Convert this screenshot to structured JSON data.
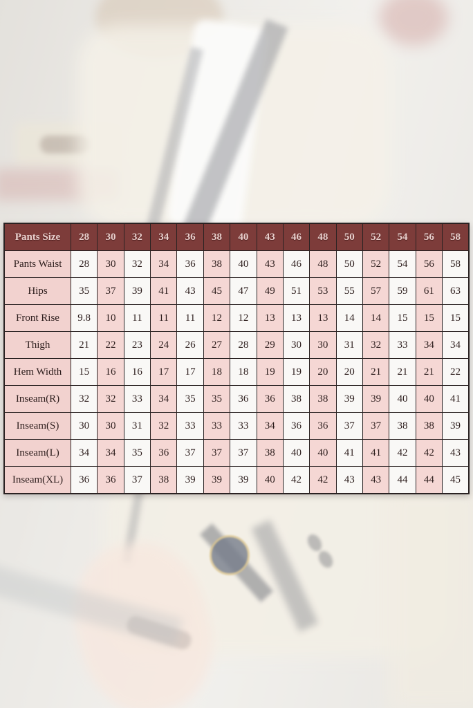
{
  "table": {
    "header": {
      "label": "Pants Size",
      "sizes": [
        "28",
        "30",
        "32",
        "34",
        "36",
        "38",
        "40",
        "43",
        "46",
        "48",
        "50",
        "52",
        "54",
        "56",
        "58"
      ]
    },
    "rows": [
      {
        "label": "Pants Waist",
        "values": [
          "28",
          "30",
          "32",
          "34",
          "36",
          "38",
          "40",
          "43",
          "46",
          "48",
          "50",
          "52",
          "54",
          "56",
          "58"
        ]
      },
      {
        "label": "Hips",
        "values": [
          "35",
          "37",
          "39",
          "41",
          "43",
          "45",
          "47",
          "49",
          "51",
          "53",
          "55",
          "57",
          "59",
          "61",
          "63"
        ]
      },
      {
        "label": "Front Rise",
        "values": [
          "9.8",
          "10",
          "11",
          "11",
          "11",
          "12",
          "12",
          "13",
          "13",
          "13",
          "14",
          "14",
          "15",
          "15",
          "15"
        ]
      },
      {
        "label": "Thigh",
        "values": [
          "21",
          "22",
          "23",
          "24",
          "26",
          "27",
          "28",
          "29",
          "30",
          "30",
          "31",
          "32",
          "33",
          "34",
          "34"
        ]
      },
      {
        "label": "Hem Width",
        "values": [
          "15",
          "16",
          "16",
          "17",
          "17",
          "18",
          "18",
          "19",
          "19",
          "20",
          "20",
          "21",
          "21",
          "21",
          "22"
        ]
      },
      {
        "label": "Inseam(R)",
        "values": [
          "32",
          "32",
          "33",
          "34",
          "35",
          "35",
          "36",
          "36",
          "38",
          "38",
          "39",
          "39",
          "40",
          "40",
          "41"
        ]
      },
      {
        "label": "Inseam(S)",
        "values": [
          "30",
          "30",
          "31",
          "32",
          "33",
          "33",
          "33",
          "34",
          "36",
          "36",
          "37",
          "37",
          "38",
          "38",
          "39"
        ]
      },
      {
        "label": "Inseam(L)",
        "values": [
          "34",
          "34",
          "35",
          "36",
          "37",
          "37",
          "37",
          "38",
          "40",
          "40",
          "41",
          "41",
          "42",
          "42",
          "43"
        ]
      },
      {
        "label": "Inseam(XL)",
        "values": [
          "36",
          "36",
          "37",
          "38",
          "39",
          "39",
          "39",
          "40",
          "42",
          "42",
          "43",
          "43",
          "44",
          "44",
          "45"
        ]
      }
    ]
  },
  "colors": {
    "header_bg": "#7d3c3a",
    "header_text": "#e9d0cd",
    "label_bg": "#f2d2cf",
    "pink_bg": "#f5d7d4",
    "plain_bg": "#f9f8f6",
    "border": "#2a2222",
    "cell_text": "#2c1d1c"
  }
}
